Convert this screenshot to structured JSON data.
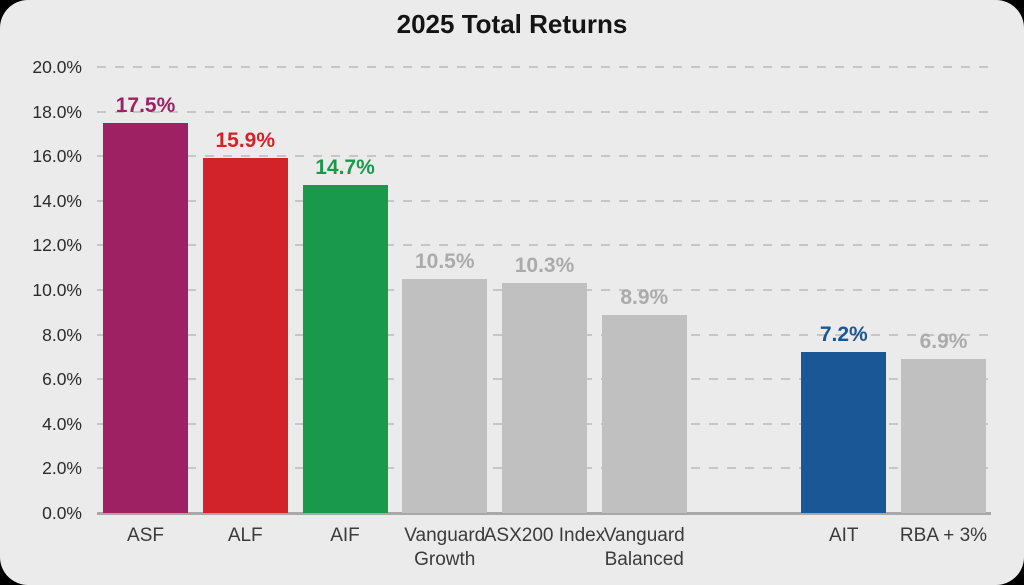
{
  "chart_data": {
    "type": "bar",
    "title": "2025 Total Returns",
    "categories": [
      "ASF",
      "ALF",
      "AIF",
      "Vanguard Growth",
      "ASX200 Index",
      "Vanguard Balanced",
      "AIT",
      "RBA + 3%"
    ],
    "values": [
      17.5,
      15.9,
      14.7,
      10.5,
      10.3,
      8.9,
      7.2,
      6.9
    ],
    "value_labels": [
      "17.5%",
      "15.9%",
      "14.7%",
      "10.5%",
      "10.3%",
      "8.9%",
      "7.2%",
      "6.9%"
    ],
    "bar_colors": [
      "#9E2164",
      "#D2232A",
      "#18994C",
      "#C0C0C0",
      "#C0C0C0",
      "#C0C0C0",
      "#1A5796",
      "#C0C0C0"
    ],
    "value_label_colors": [
      "#9E2164",
      "#D2232A",
      "#18994C",
      "#ABABAB",
      "#ABABAB",
      "#ABABAB",
      "#1A5796",
      "#ABABAB"
    ],
    "gap_after_index": 5,
    "xlabel": "",
    "ylabel": "",
    "ylim": [
      0,
      20
    ],
    "ytick_step": 2,
    "ytick_labels": [
      "0.0%",
      "2.0%",
      "4.0%",
      "6.0%",
      "8.0%",
      "10.0%",
      "12.0%",
      "14.0%",
      "16.0%",
      "18.0%",
      "20.0%"
    ],
    "grid": "horizontal-dashed",
    "legend": "none",
    "colors": {
      "background": "#EBEBEB",
      "outer_background": "#000000",
      "gridline": "#C6C6C6",
      "axis_line": "#A8A8A8",
      "title_text": "#141414",
      "ytick_text": "#2B2B2B",
      "xtick_text": "#3B3B3B"
    }
  }
}
